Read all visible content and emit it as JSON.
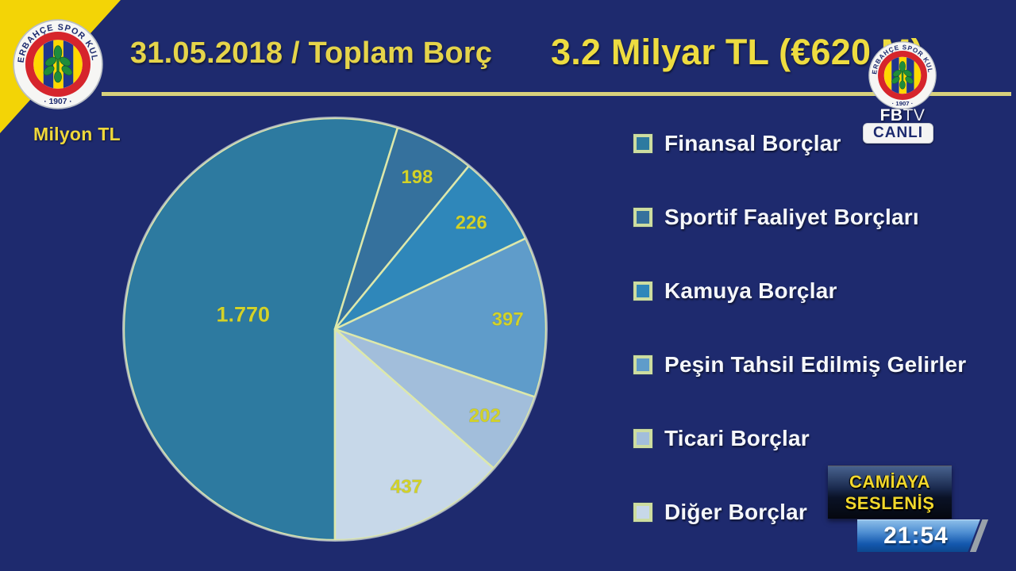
{
  "header": {
    "date_title": "31.05.2018 / Toplam Borç",
    "total_title": "3.2 Milyar TL (€620 M)",
    "unit_label": "Milyon TL"
  },
  "branding": {
    "club_ring_text": "FENERBAHÇE SPOR KULÜBÜ",
    "club_year": "· 1907 ·",
    "channel_fb": "FB",
    "channel_tv": "TV",
    "live_badge": "CANLI"
  },
  "chart_data": {
    "type": "pie",
    "title": "31.05.2018 / Toplam Borç — 3.2 Milyar TL (€620 M)",
    "unit": "Milyon TL",
    "total_milyon": 3230,
    "start_angle_deg_cw_from_top": 180,
    "direction": "clockwise",
    "legend_position": "right",
    "slices": [
      {
        "name": "Finansal Borçlar",
        "value": 1770,
        "label": "1.770",
        "color": "#2d7aa0"
      },
      {
        "name": "Sportif Faaliyet Borçları",
        "value": 198,
        "label": "198",
        "color": "#35719d"
      },
      {
        "name": "Kamuya Borçlar",
        "value": 226,
        "label": "226",
        "color": "#2f87ba"
      },
      {
        "name": "Peşin Tahsil Edilmiş Gelirler",
        "value": 397,
        "label": "397",
        "color": "#5f9cca"
      },
      {
        "name": "Ticari Borçlar",
        "value": 202,
        "label": "202",
        "color": "#a2bedb"
      },
      {
        "name": "Diğer Borçlar",
        "value": 437,
        "label": "437",
        "color": "#c7d8e9"
      }
    ]
  },
  "overlay": {
    "program_title_line1": "CAMİAYA",
    "program_title_line2": "SESLENİŞ",
    "clock": "21:54"
  },
  "colors": {
    "background": "#1e2a6e",
    "corner_yellow": "#f3d406",
    "title_yellow": "#e5d44a",
    "pie_border": "#dde8ab",
    "pie_value_labels": "#d2d229",
    "legend_text": "#f5f7fb"
  }
}
